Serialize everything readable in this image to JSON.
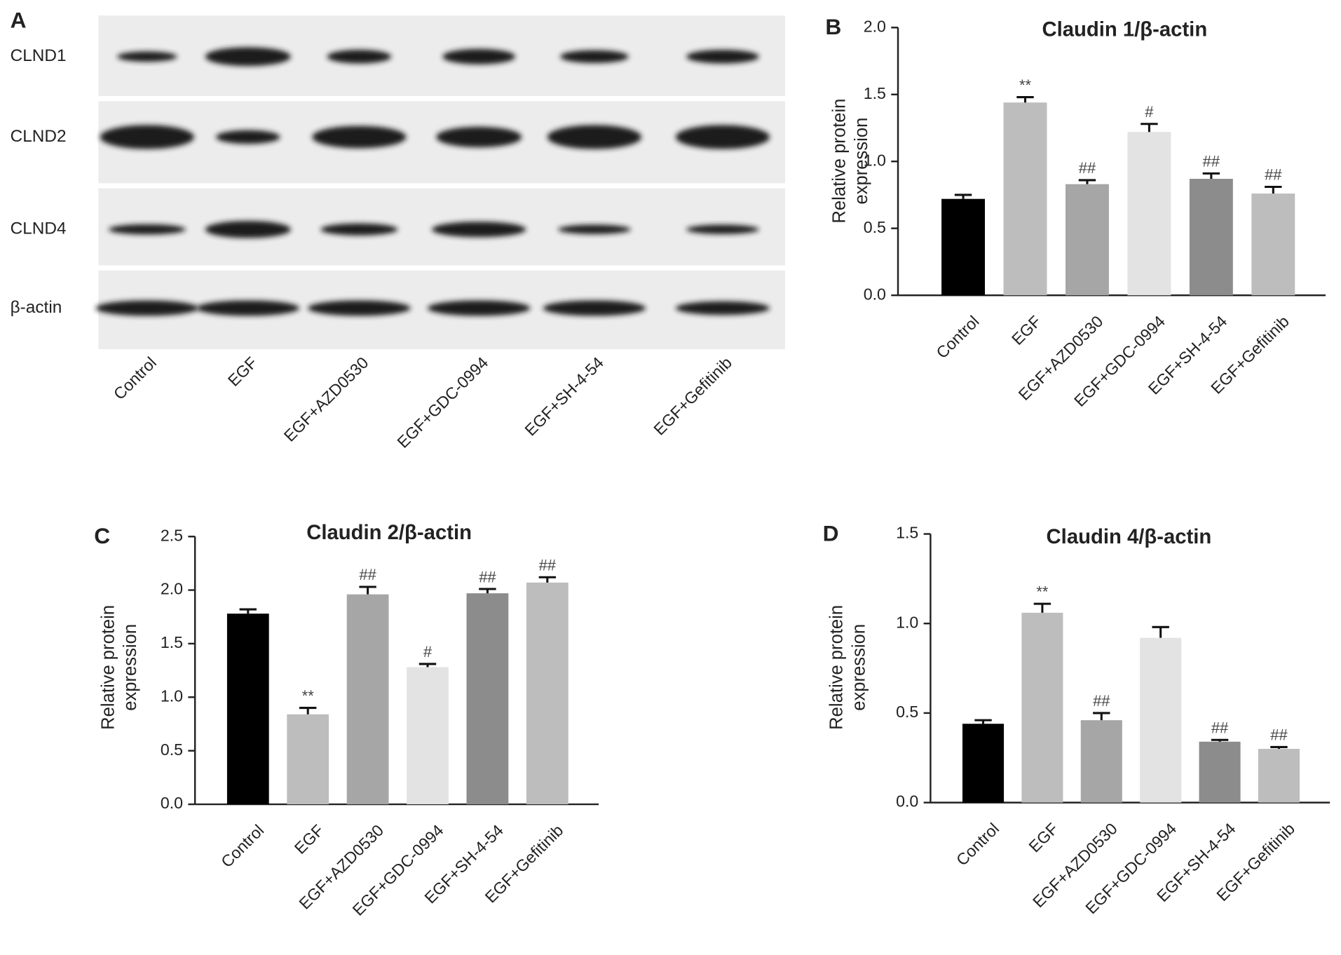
{
  "blot": {
    "panel_label": "A",
    "rows": [
      "CLND1",
      "CLND2",
      "CLND4",
      "β-actin"
    ],
    "lanes": [
      "Control",
      "EGF",
      "EGF+AZD0530",
      "EGF+GDC-0994",
      "EGF+SH-4-54",
      "EGF+Gefitinib"
    ]
  },
  "chart_data": [
    {
      "type": "bar",
      "panel_label": "B",
      "title": "Claudin 1/β-actin",
      "ylabel": [
        "Relative protein",
        "expression"
      ],
      "categories": [
        "Control",
        "EGF",
        "EGF+AZD0530",
        "EGF+GDC-0994",
        "EGF+SH-4-54",
        "EGF+Gefitinib"
      ],
      "values": [
        0.72,
        1.44,
        0.83,
        1.22,
        0.87,
        0.76
      ],
      "errors": [
        0.03,
        0.04,
        0.03,
        0.06,
        0.04,
        0.05
      ],
      "annotations": [
        null,
        "**",
        "##",
        "#",
        "##",
        "##"
      ],
      "colors": [
        "#000000",
        "#bdbdbd",
        "#a6a6a6",
        "#e3e3e3",
        "#8c8c8c",
        "#bdbdbd"
      ],
      "ylim": [
        0,
        2
      ],
      "yticks": [
        {
          "value": 0,
          "label": "0.0"
        },
        {
          "value": 0.5,
          "label": "0.5"
        },
        {
          "value": 1,
          "label": "1.0"
        },
        {
          "value": 1.5,
          "label": "1.5"
        },
        {
          "value": 2,
          "label": "2.0"
        }
      ]
    },
    {
      "type": "bar",
      "panel_label": "C",
      "title": "Claudin 2/β-actin",
      "ylabel": [
        "Relative protein",
        "expression"
      ],
      "categories": [
        "Control",
        "EGF",
        "EGF+AZD0530",
        "EGF+GDC-0994",
        "EGF+SH-4-54",
        "EGF+Gefitinib"
      ],
      "values": [
        1.78,
        0.84,
        1.96,
        1.28,
        1.97,
        2.07
      ],
      "errors": [
        0.04,
        0.06,
        0.07,
        0.03,
        0.04,
        0.05
      ],
      "annotations": [
        null,
        "**",
        "##",
        "#",
        "##",
        "##"
      ],
      "colors": [
        "#000000",
        "#bdbdbd",
        "#a6a6a6",
        "#e3e3e3",
        "#8c8c8c",
        "#bdbdbd"
      ],
      "ylim": [
        0,
        2.5
      ],
      "yticks": [
        {
          "value": 0,
          "label": "0.0"
        },
        {
          "value": 0.5,
          "label": "0.5"
        },
        {
          "value": 1,
          "label": "1.0"
        },
        {
          "value": 1.5,
          "label": "1.5"
        },
        {
          "value": 2,
          "label": "2.0"
        },
        2.5
      ]
    },
    {
      "type": "bar",
      "panel_label": "D",
      "title": "Claudin 4/β-actin",
      "ylabel": [
        "Relative protein",
        "expression"
      ],
      "categories": [
        "Control",
        "EGF",
        "EGF+AZD0530",
        "EGF+GDC-0994",
        "EGF+SH-4-54",
        "EGF+Gefitinib"
      ],
      "values": [
        0.44,
        1.06,
        0.46,
        0.92,
        0.34,
        0.3
      ],
      "errors": [
        0.02,
        0.05,
        0.04,
        0.06,
        0.01,
        0.01
      ],
      "annotations": [
        null,
        "**",
        "##",
        null,
        "##",
        "##"
      ],
      "colors": [
        "#000000",
        "#bdbdbd",
        "#a6a6a6",
        "#e3e3e3",
        "#8c8c8c",
        "#bdbdbd"
      ],
      "ylim": [
        0,
        1.5
      ],
      "yticks": [
        {
          "value": 0,
          "label": "0.0"
        },
        {
          "value": 0.5,
          "label": "0.5"
        },
        {
          "value": 1,
          "label": "1.0"
        },
        1.5
      ]
    }
  ]
}
